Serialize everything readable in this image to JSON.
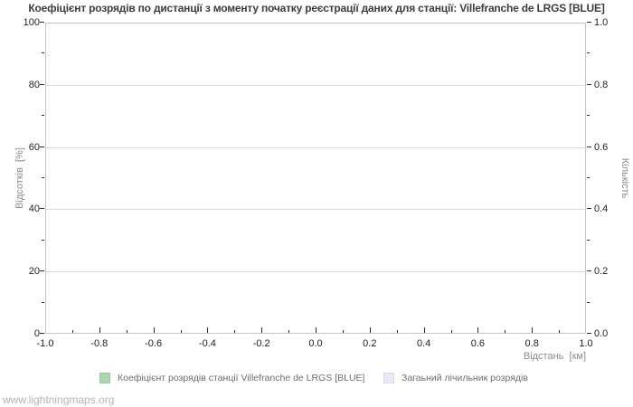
{
  "title": "Коефіцієнт розрядів по дистанції з моменту початку реєстрації даних для станції: Villefranche de LRGS [BLUE]",
  "watermark": "www.lightningmaps.org",
  "colors": {
    "frame": "#c6c6c6",
    "grid": "#dcdcdc",
    "tick": "#2a2a2a",
    "title_text": "#3c3c3c",
    "axis_title_text": "#8c8c8c",
    "tick_label_text": "#1f1f1f",
    "legend_text": "#6e6e6e",
    "watermark_text": "#b4b4b4",
    "series_station": "#abd7ab",
    "series_total": "#e9e9f8"
  },
  "legend": {
    "items": [
      {
        "label": "Коефіцієнт розрядів станції Villefranche de LRGS [BLUE]",
        "color": "#abd7ab"
      },
      {
        "label": "Загаьний лічильник розрядів",
        "color": "#e9e9f8"
      }
    ]
  },
  "chart_data": {
    "type": "bar",
    "title": "Коефіцієнт розрядів по дистанції з моменту початку реєстрації даних для станції: Villefranche de LRGS [BLUE]",
    "xlabel": "Відстань  [км]",
    "ylabel_left": "Відсотків  [%]",
    "ylabel_right": "Кількість",
    "xlim": [
      -1.0,
      1.0
    ],
    "ylim_left": [
      0,
      100
    ],
    "ylim_right": [
      0.0,
      1.0
    ],
    "x_major_ticks": [
      "-1.0",
      "-0.8",
      "-0.6",
      "-0.4",
      "-0.2",
      "0.0",
      "0.2",
      "0.4",
      "0.6",
      "0.8",
      "1.0"
    ],
    "y_left_ticks": [
      "0",
      "20",
      "40",
      "60",
      "80",
      "100"
    ],
    "y_right_ticks": [
      "0.0",
      "0.2",
      "0.4",
      "0.6",
      "0.8",
      "1.0"
    ],
    "grid": "horizontal-only",
    "legend_position": "bottom",
    "series": [
      {
        "name": "Коефіцієнт розрядів станції Villefranche de LRGS [BLUE]",
        "color": "#abd7ab",
        "values": []
      },
      {
        "name": "Загаьний лічильник розрядів",
        "color": "#e9e9f8",
        "values": []
      }
    ]
  }
}
